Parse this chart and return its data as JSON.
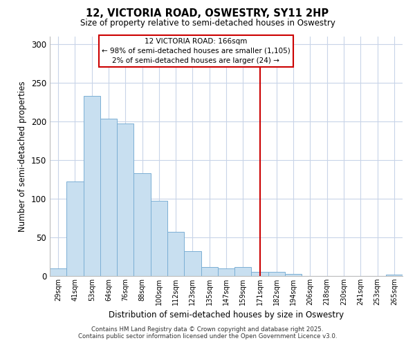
{
  "title": "12, VICTORIA ROAD, OSWESTRY, SY11 2HP",
  "subtitle": "Size of property relative to semi-detached houses in Oswestry",
  "xlabel": "Distribution of semi-detached houses by size in Oswestry",
  "ylabel": "Number of semi-detached properties",
  "bar_labels": [
    "29sqm",
    "41sqm",
    "53sqm",
    "64sqm",
    "76sqm",
    "88sqm",
    "100sqm",
    "112sqm",
    "123sqm",
    "135sqm",
    "147sqm",
    "159sqm",
    "171sqm",
    "182sqm",
    "194sqm",
    "206sqm",
    "218sqm",
    "230sqm",
    "241sqm",
    "253sqm",
    "265sqm"
  ],
  "bar_values": [
    10,
    122,
    233,
    203,
    197,
    133,
    97,
    57,
    32,
    12,
    10,
    12,
    5,
    5,
    3,
    0,
    0,
    0,
    0,
    0,
    2
  ],
  "bar_color": "#c8dff0",
  "bar_edge_color": "#7bafd4",
  "ylim": [
    0,
    310
  ],
  "yticks": [
    0,
    50,
    100,
    150,
    200,
    250,
    300
  ],
  "vline_x_idx": 12,
  "vline_color": "#cc0000",
  "annotation_title": "12 VICTORIA ROAD: 166sqm",
  "annotation_line1": "← 98% of semi-detached houses are smaller (1,105)",
  "annotation_line2": "2% of semi-detached houses are larger (24) →",
  "footer_line1": "Contains HM Land Registry data © Crown copyright and database right 2025.",
  "footer_line2": "Contains public sector information licensed under the Open Government Licence v3.0.",
  "background_color": "#ffffff",
  "grid_color": "#c8d4e8",
  "ann_box_color": "#cc0000"
}
